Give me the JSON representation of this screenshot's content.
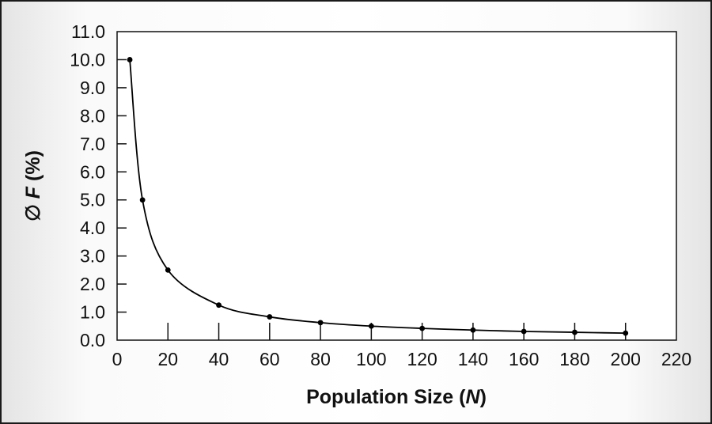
{
  "chart_data": {
    "type": "line",
    "title": "",
    "xlabel_parts": [
      "Population Size (",
      "N",
      ")"
    ],
    "ylabel_parts": [
      "∅ ",
      "F",
      " (%)"
    ],
    "xlim": [
      0,
      220
    ],
    "ylim": [
      0,
      11
    ],
    "x_ticks": [
      0,
      20,
      40,
      60,
      80,
      100,
      120,
      140,
      160,
      180,
      200,
      220
    ],
    "x_tick_labels": [
      "0",
      "20",
      "40",
      "60",
      "80",
      "100",
      "120",
      "140",
      "160",
      "180",
      "200",
      "220"
    ],
    "y_ticks": [
      0,
      1,
      2,
      3,
      4,
      5,
      6,
      7,
      8,
      9,
      10,
      11
    ],
    "y_tick_labels": [
      "0.0",
      "1.0",
      "2.0",
      "3.0",
      "4.0",
      "5.0",
      "6.0",
      "7.0",
      "8.0",
      "9.0",
      "10.0",
      "11.0"
    ],
    "grid": false,
    "series": [
      {
        "x": [
          5,
          10,
          20,
          40,
          60,
          80,
          100,
          120,
          140,
          160,
          180,
          200
        ],
        "y": [
          10.0,
          5.0,
          2.5,
          1.25,
          0.83,
          0.625,
          0.5,
          0.42,
          0.36,
          0.31,
          0.28,
          0.25
        ],
        "color": "#000000"
      }
    ]
  }
}
